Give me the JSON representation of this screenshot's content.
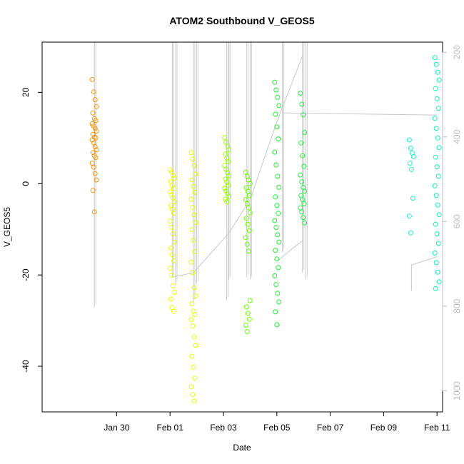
{
  "chart_data": {
    "type": "scatter",
    "title": "ATOM2 Southbound V_GEOS5",
    "xlabel": "Date",
    "ylabel": "V_GEOS5",
    "xlim": [
      "2016-01-27T05:00",
      "2016-02-11T05:00"
    ],
    "ylim": [
      -50,
      31
    ],
    "x_ticks": [
      {
        "date": "2016-01-30",
        "label": "Jan 30"
      },
      {
        "date": "2016-02-01",
        "label": "Feb 01"
      },
      {
        "date": "2016-02-03",
        "label": "Feb 03"
      },
      {
        "date": "2016-02-05",
        "label": "Feb 05"
      },
      {
        "date": "2016-02-07",
        "label": "Feb 07"
      },
      {
        "date": "2016-02-09",
        "label": "Feb 09"
      },
      {
        "date": "2016-02-11",
        "label": "Feb 11"
      }
    ],
    "y_ticks": [
      20,
      0,
      -20,
      -40
    ],
    "right_axis": {
      "color": "#bdbdbd",
      "lim": [
        176,
        1050
      ],
      "ticks": [
        200,
        400,
        600,
        800,
        1000
      ]
    },
    "marker": "open-circle",
    "series": [
      {
        "t": "2016-01-29T04:00",
        "color": "#f7950e",
        "values": [
          22.8,
          20.1,
          18.4,
          16.9,
          15.5,
          14.2,
          13.8,
          13.1,
          12.6,
          12.1,
          11.5,
          10.8,
          10.2,
          10.0,
          9.6,
          8.9,
          8.1,
          7.4,
          6.8,
          6.1,
          5.7,
          4.5,
          3.6,
          2.2,
          0.8,
          -1.5,
          -6.2
        ]
      },
      {
        "t": "2016-02-01T02:00",
        "color": "#eeff00",
        "values": [
          3.0,
          2.5,
          1.8,
          1.2,
          0.5,
          -0.4,
          -1.1,
          -1.8,
          -2.4,
          -3.1,
          -4.0,
          -4.8,
          -5.6,
          -6.5,
          -8.2,
          -9.6,
          -11.0,
          -12.8,
          -14.1,
          -15.6,
          -16.9,
          -18.5,
          -20.1,
          -22.4,
          -23.8,
          -25.3,
          -27.1,
          -28.0
        ]
      },
      {
        "t": "2016-02-01T21:00",
        "color": "#ddff00",
        "values": [
          6.8,
          5.4,
          3.9,
          2.1,
          0.8,
          -0.6,
          -1.9,
          -3.4,
          -5.2,
          -6.8,
          -8.5,
          -10.1,
          -12.4,
          -14.9,
          -17.2,
          -19.5,
          -22.8,
          -24.6,
          -26.3,
          -27.9,
          -28.7,
          -29.8,
          -31.2,
          -33.6,
          -35.4,
          -37.8,
          -40.2,
          -42.6,
          -44.5,
          -46.2,
          -47.6
        ]
      },
      {
        "t": "2016-02-03T03:00",
        "color": "#99ff00",
        "values": [
          10.1,
          9.1,
          8.2,
          7.4,
          6.5,
          5.6,
          4.8,
          4.0,
          3.1,
          2.4,
          1.7,
          1.0,
          0.3,
          -0.4,
          -1.0,
          -1.6,
          -2.2,
          -2.8,
          -3.4,
          -4.0
        ]
      },
      {
        "t": "2016-02-03T22:00",
        "color": "#66ff00",
        "values": [
          2.5,
          1.6,
          0.8,
          0.0,
          -0.9,
          -1.7,
          -2.6,
          -3.5,
          -4.4,
          -5.3,
          -6.4,
          -7.6,
          -8.9,
          -10.3,
          -11.8,
          -13.3,
          -14.8,
          -25.6,
          -27.0,
          -28.4,
          -29.7,
          -31.0,
          -32.4
        ]
      },
      {
        "t": "2016-02-05T00:00",
        "color": "#22ee33",
        "values": [
          22.2,
          20.5,
          18.9,
          17.1,
          15.2,
          12.4,
          9.8,
          6.9,
          4.1,
          1.6,
          -0.8,
          -2.9,
          -4.8,
          -6.5,
          -8.1,
          -9.6,
          -11.2,
          -12.8,
          -14.6,
          -16.5,
          -18.4,
          -20.2,
          -22.1,
          -24.0,
          -25.9,
          -28.1,
          -30.9
        ]
      },
      {
        "t": "2016-02-05T23:00",
        "color": "#22ee44",
        "values": [
          19.8,
          17.4,
          15.1,
          11.2,
          8.9,
          6.1,
          3.8,
          1.9,
          0.4,
          -0.8,
          -1.7,
          -2.6,
          -3.5,
          -4.4,
          -5.3,
          -6.2,
          -7.4,
          -8.6
        ]
      },
      {
        "t": "2016-02-10T01:00",
        "color": "#22eecc",
        "values": [
          9.6,
          7.8,
          6.7,
          5.9,
          4.5,
          3.1,
          -3.2,
          -7.1,
          -10.8
        ]
      },
      {
        "t": "2016-02-11T00:00",
        "color": "#11eebb",
        "values": [
          27.6,
          26.1,
          24.4,
          22.7,
          20.8,
          18.6,
          16.5,
          14.3,
          12.1,
          10.0,
          7.9,
          5.8,
          3.7,
          1.6,
          -0.5,
          -2.6,
          -4.7,
          -6.8,
          -8.9,
          -11.0,
          -13.1,
          -15.2,
          -17.3,
          -19.4,
          -21.5,
          -23.0
        ]
      }
    ],
    "grey_verticals": [
      {
        "t": "2016-01-29T04:00",
        "to": -27.0
      },
      {
        "t": "2016-02-01T02:00",
        "to": -20.5
      },
      {
        "t": "2016-02-01T05:00",
        "to": -22.0
      },
      {
        "t": "2016-02-01T21:00",
        "to": -26.0
      },
      {
        "t": "2016-02-02T00:00",
        "to": -22.0
      },
      {
        "t": "2016-02-03T03:00",
        "to": -25.5
      },
      {
        "t": "2016-02-03T05:00",
        "to": -21.0
      },
      {
        "t": "2016-02-03T21:00",
        "to": -20.5
      },
      {
        "t": "2016-02-04T00:00",
        "to": -21.0
      },
      {
        "t": "2016-02-05T23:00",
        "to": -19.5
      },
      {
        "t": "2016-02-06T02:00",
        "to": -21.0
      },
      {
        "t": "2016-02-05T05:00",
        "to": -15.0
      }
    ],
    "grey_path": [
      [
        "2016-02-01T02:00",
        -20.5
      ],
      [
        "2016-02-01T21:00",
        -19.5
      ],
      [
        "2016-02-03T05:00",
        -10.8
      ],
      [
        "2016-02-04T00:00",
        -3.5
      ],
      [
        "2016-02-05T00:00",
        13.5
      ],
      [
        "2016-02-05T23:00",
        28.0
      ]
    ],
    "grey_path2": [
      [
        "2016-02-05T05:00",
        15.5
      ],
      [
        "2016-02-11T00:00",
        15.0
      ]
    ],
    "grey_path3": [
      [
        "2016-02-05T00:00",
        -17.0
      ],
      [
        "2016-02-05T23:00",
        -12.5
      ]
    ],
    "grey_path4": [
      [
        "2016-02-10T01:00",
        -23.5
      ],
      [
        "2016-02-10T01:00",
        -17.8
      ],
      [
        "2016-02-11T00:00",
        -16.0
      ]
    ]
  }
}
